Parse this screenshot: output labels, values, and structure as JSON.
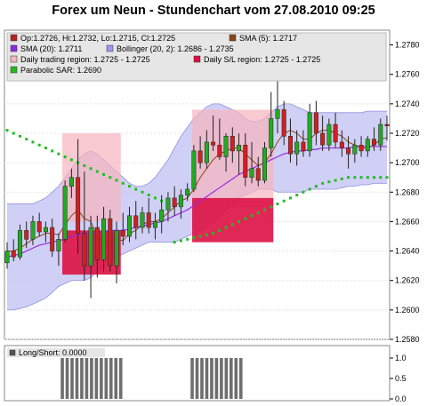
{
  "title": "Forex um Neun - Stundenchart vom 27.08.2010 09:25",
  "chart_data": [
    {
      "type": "candlestick",
      "ylim": [
        1.258,
        1.279
      ],
      "y_ticks": [
        "1.2580",
        "1.2600",
        "1.2620",
        "1.2640",
        "1.2660",
        "1.2680",
        "1.2700",
        "1.2720",
        "1.2740",
        "1.2760",
        "1.2780"
      ],
      "legend": [
        {
          "label": "Op:1.2726, Hi:1.2732, Lo:1.2715, Cl:1.2725",
          "color": "#b22222"
        },
        {
          "label": "SMA (5): 1.2717",
          "color": "#8b4513"
        },
        {
          "label": "SMA (20): 1.2711",
          "color": "#8a2be2"
        },
        {
          "label": "Bollinger (20, 2): 1.2686 - 1.2735",
          "color": "#9999ee"
        },
        {
          "label": "Daily trading region: 1.2725 - 1.2725",
          "color": "#f0b8c0"
        },
        {
          "label": "Daily S/L region: 1.2725 - 1.2725",
          "color": "#dd1144"
        },
        {
          "label": "Parabolic SAR: 1.2690",
          "color": "#22bb22"
        }
      ],
      "candles": [
        [
          1.2632,
          1.2646,
          1.2628,
          1.264
        ],
        [
          1.264,
          1.2648,
          1.2633,
          1.2636
        ],
        [
          1.2636,
          1.2658,
          1.2634,
          1.2654
        ],
        [
          1.2654,
          1.266,
          1.2642,
          1.2648
        ],
        [
          1.2648,
          1.2664,
          1.2644,
          1.266
        ],
        [
          1.266,
          1.2666,
          1.265,
          1.2653
        ],
        [
          1.2653,
          1.266,
          1.2646,
          1.2656
        ],
        [
          1.2656,
          1.2662,
          1.2636,
          1.264
        ],
        [
          1.264,
          1.2652,
          1.263,
          1.2648
        ],
        [
          1.2648,
          1.2688,
          1.2646,
          1.2684
        ],
        [
          1.2684,
          1.2696,
          1.2676,
          1.269
        ],
        [
          1.269,
          1.2716,
          1.2638,
          1.2652
        ],
        [
          1.2652,
          1.2694,
          1.262,
          1.263
        ],
        [
          1.263,
          1.2664,
          1.2608,
          1.2656
        ],
        [
          1.2656,
          1.2664,
          1.2622,
          1.2634
        ],
        [
          1.2634,
          1.267,
          1.2626,
          1.2662
        ],
        [
          1.2662,
          1.2668,
          1.2626,
          1.263
        ],
        [
          1.263,
          1.266,
          1.2618,
          1.2654
        ],
        [
          1.2654,
          1.2666,
          1.2644,
          1.265
        ],
        [
          1.265,
          1.267,
          1.2646,
          1.2664
        ],
        [
          1.2664,
          1.2674,
          1.2648,
          1.2656
        ],
        [
          1.2656,
          1.267,
          1.2652,
          1.2666
        ],
        [
          1.2666,
          1.2676,
          1.2652,
          1.2656
        ],
        [
          1.2656,
          1.2666,
          1.2648,
          1.266
        ],
        [
          1.266,
          1.2678,
          1.2652,
          1.2668
        ],
        [
          1.2668,
          1.268,
          1.266,
          1.2676
        ],
        [
          1.2676,
          1.2684,
          1.2664,
          1.267
        ],
        [
          1.267,
          1.2682,
          1.2662,
          1.2678
        ],
        [
          1.2678,
          1.2686,
          1.2674,
          1.2682
        ],
        [
          1.2682,
          1.2712,
          1.268,
          1.2708
        ],
        [
          1.2708,
          1.2718,
          1.2696,
          1.27
        ],
        [
          1.27,
          1.2722,
          1.2696,
          1.2714
        ],
        [
          1.2714,
          1.2732,
          1.2708,
          1.2712
        ],
        [
          1.2712,
          1.273,
          1.2702,
          1.2704
        ],
        [
          1.2704,
          1.272,
          1.2694,
          1.2718
        ],
        [
          1.2718,
          1.2724,
          1.27,
          1.2708
        ],
        [
          1.2708,
          1.272,
          1.2692,
          1.2712
        ],
        [
          1.2712,
          1.272,
          1.2684,
          1.269
        ],
        [
          1.269,
          1.2714,
          1.2686,
          1.2696
        ],
        [
          1.2696,
          1.2704,
          1.2684,
          1.2688
        ],
        [
          1.2688,
          1.2714,
          1.2686,
          1.271
        ],
        [
          1.271,
          1.2748,
          1.2704,
          1.273
        ],
        [
          1.273,
          1.2764,
          1.272,
          1.2736
        ],
        [
          1.2736,
          1.2742,
          1.2712,
          1.2718
        ],
        [
          1.2718,
          1.273,
          1.27,
          1.2706
        ],
        [
          1.2706,
          1.2722,
          1.2698,
          1.2714
        ],
        [
          1.2714,
          1.2722,
          1.2704,
          1.2708
        ],
        [
          1.2708,
          1.274,
          1.2704,
          1.2734
        ],
        [
          1.2734,
          1.2742,
          1.2712,
          1.272
        ],
        [
          1.272,
          1.2732,
          1.2708,
          1.2712
        ],
        [
          1.2712,
          1.273,
          1.2708,
          1.2726
        ],
        [
          1.2726,
          1.2734,
          1.271,
          1.2714
        ],
        [
          1.2714,
          1.2722,
          1.2704,
          1.271
        ],
        [
          1.271,
          1.2718,
          1.2696,
          1.2706
        ],
        [
          1.2706,
          1.2716,
          1.27,
          1.2712
        ],
        [
          1.2712,
          1.2718,
          1.2704,
          1.2708
        ],
        [
          1.2708,
          1.2718,
          1.2704,
          1.2716
        ],
        [
          1.2716,
          1.2724,
          1.2708,
          1.2712
        ],
        [
          1.2712,
          1.273,
          1.2708,
          1.2726
        ],
        [
          1.2726,
          1.2732,
          1.2715,
          1.2725
        ]
      ],
      "sma5": [
        1.264,
        1.264,
        1.2642,
        1.2645,
        1.2648,
        1.265,
        1.2652,
        1.2652,
        1.2651,
        1.2658,
        1.2664,
        1.2668,
        1.2662,
        1.266,
        1.265,
        1.2645,
        1.2646,
        1.2648,
        1.2647,
        1.2652,
        1.2654,
        1.2658,
        1.266,
        1.266,
        1.2662,
        1.2666,
        1.267,
        1.2674,
        1.2676,
        1.2682,
        1.269,
        1.2696,
        1.2702,
        1.2706,
        1.2708,
        1.271,
        1.271,
        1.2706,
        1.2702,
        1.2698,
        1.27,
        1.2706,
        1.2714,
        1.272,
        1.2722,
        1.272,
        1.2716,
        1.2716,
        1.272,
        1.2722,
        1.2722,
        1.272,
        1.2718,
        1.2714,
        1.2712,
        1.271,
        1.271,
        1.2712,
        1.2716,
        1.2717
      ],
      "sma20": [
        1.2636,
        1.2637,
        1.2638,
        1.264,
        1.2642,
        1.2644,
        1.2645,
        1.2646,
        1.2647,
        1.2648,
        1.265,
        1.2651,
        1.2652,
        1.2652,
        1.2653,
        1.2653,
        1.2654,
        1.2654,
        1.2654,
        1.2655,
        1.2656,
        1.2657,
        1.2658,
        1.2659,
        1.266,
        1.2662,
        1.2664,
        1.2666,
        1.2668,
        1.2671,
        1.2674,
        1.2677,
        1.268,
        1.2683,
        1.2686,
        1.2689,
        1.2692,
        1.2694,
        1.2696,
        1.2698,
        1.27,
        1.2702,
        1.2704,
        1.2706,
        1.2707,
        1.2708,
        1.2708,
        1.2709,
        1.2709,
        1.271,
        1.271,
        1.271,
        1.271,
        1.271,
        1.2711,
        1.2711,
        1.2711,
        1.2711,
        1.2711,
        1.2711
      ],
      "bollinger_upper": [
        1.2672,
        1.2672,
        1.2672,
        1.2672,
        1.2672,
        1.2674,
        1.2676,
        1.268,
        1.2684,
        1.269,
        1.2696,
        1.2702,
        1.2706,
        1.2708,
        1.2706,
        1.2702,
        1.2698,
        1.2694,
        1.269,
        1.2686,
        1.2684,
        1.2684,
        1.2686,
        1.269,
        1.2696,
        1.2702,
        1.271,
        1.2718,
        1.2724,
        1.273,
        1.2734,
        1.2738,
        1.274,
        1.274,
        1.2738,
        1.2736,
        1.2734,
        1.273,
        1.2728,
        1.2728,
        1.273,
        1.2734,
        1.2738,
        1.274,
        1.274,
        1.2738,
        1.2736,
        1.2734,
        1.2734,
        1.2734,
        1.2734,
        1.2734,
        1.2734,
        1.2734,
        1.2734,
        1.2734,
        1.2735,
        1.2735,
        1.2735,
        1.2735
      ],
      "bollinger_lower": [
        1.26,
        1.26,
        1.2601,
        1.2602,
        1.2604,
        1.2606,
        1.2608,
        1.2612,
        1.2616,
        1.2618,
        1.262,
        1.262,
        1.262,
        1.2622,
        1.2626,
        1.263,
        1.2634,
        1.2636,
        1.2638,
        1.264,
        1.2642,
        1.2644,
        1.2646,
        1.2646,
        1.2646,
        1.2646,
        1.2646,
        1.2648,
        1.265,
        1.2652,
        1.2654,
        1.2656,
        1.266,
        1.2664,
        1.2668,
        1.2672,
        1.2676,
        1.2678,
        1.268,
        1.2682,
        1.2682,
        1.2682,
        1.268,
        1.268,
        1.268,
        1.268,
        1.268,
        1.2682,
        1.2682,
        1.2682,
        1.2682,
        1.2682,
        1.2683,
        1.2684,
        1.2684,
        1.2685,
        1.2685,
        1.2686,
        1.2686,
        1.2686
      ],
      "parabolic_sar": [
        1.2722,
        1.272,
        1.2718,
        1.2716,
        1.2714,
        1.2712,
        1.271,
        1.2708,
        1.2706,
        1.2704,
        1.2702,
        1.27,
        1.2698,
        1.2696,
        1.2694,
        1.2692,
        1.269,
        1.2688,
        1.2686,
        1.2684,
        1.2682,
        1.268,
        1.2678,
        1.2676,
        1.2674,
        1.2672,
        1.2646,
        1.2647,
        1.2648,
        1.2649,
        1.265,
        1.2651,
        1.2652,
        1.2654,
        1.2656,
        1.2658,
        1.266,
        1.2662,
        1.2664,
        1.2666,
        1.2668,
        1.267,
        1.2672,
        1.2674,
        1.2676,
        1.2678,
        1.268,
        1.2682,
        1.2684,
        1.2686,
        1.2687,
        1.2688,
        1.2689,
        1.269,
        1.269,
        1.269,
        1.269,
        1.269,
        1.269,
        1.269
      ],
      "trading_regions": [
        {
          "from": 17,
          "to": 35,
          "low": 1.266,
          "high": 1.272
        },
        {
          "from": 57,
          "to": 82,
          "low": 1.267,
          "high": 1.2736
        }
      ],
      "sl_regions": [
        {
          "from": 17,
          "to": 35,
          "low": 1.2624,
          "high": 1.2654
        },
        {
          "from": 57,
          "to": 82,
          "low": 1.2646,
          "high": 1.2676
        }
      ]
    },
    {
      "type": "bar",
      "ylim": [
        0,
        1
      ],
      "y_ticks": [
        "0.0",
        "0.5",
        "1.0"
      ],
      "legend": [
        {
          "label": "Long/Short: 0.0000",
          "color": "#555555"
        }
      ],
      "ones": [
        {
          "from": 17,
          "to": 35
        },
        {
          "from": 57,
          "to": 72
        }
      ]
    }
  ]
}
